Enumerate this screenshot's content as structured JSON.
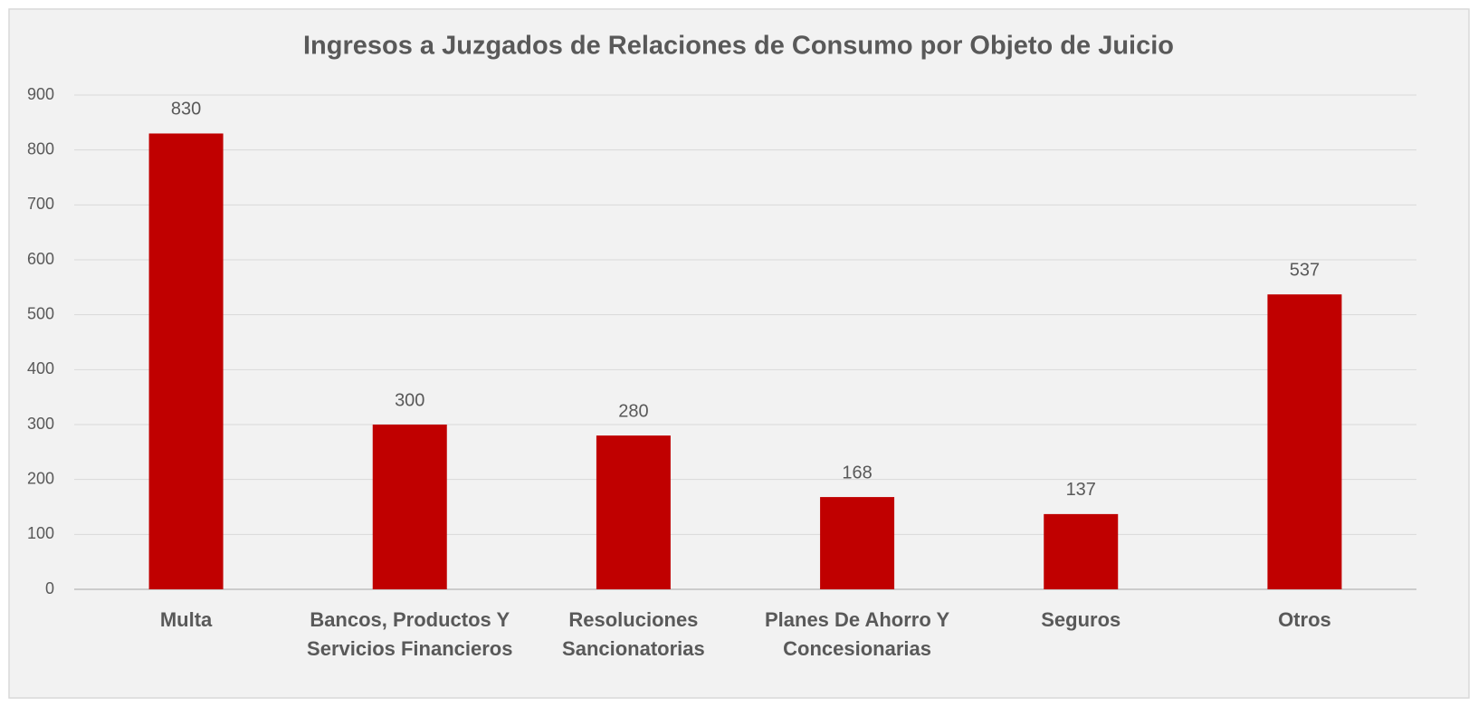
{
  "chart_data": {
    "type": "bar",
    "title": "Ingresos a Juzgados de Relaciones de Consumo por Objeto de Juicio",
    "categories": [
      "Multa",
      "Bancos, Productos Y Servicios Financieros",
      "Resoluciones Sancionatorias",
      "Planes De Ahorro Y Concesionarias",
      "Seguros",
      "Otros"
    ],
    "values": [
      830,
      300,
      280,
      168,
      137,
      537
    ],
    "color": "#c00000",
    "ylim": [
      0,
      900
    ],
    "yticks": [
      0,
      100,
      200,
      300,
      400,
      500,
      600,
      700,
      800,
      900
    ],
    "grid": true
  }
}
